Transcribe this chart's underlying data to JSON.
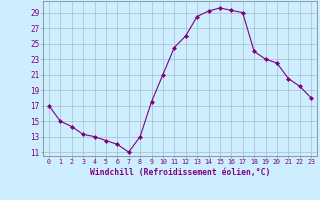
{
  "x": [
    0,
    1,
    2,
    3,
    4,
    5,
    6,
    7,
    8,
    9,
    10,
    11,
    12,
    13,
    14,
    15,
    16,
    17,
    18,
    19,
    20,
    21,
    22,
    23
  ],
  "y": [
    17,
    15,
    14.3,
    13.3,
    13,
    12.5,
    12,
    11,
    13,
    17.5,
    21,
    24.5,
    26,
    28.5,
    29.2,
    29.6,
    29.3,
    29,
    24,
    23,
    22.5,
    20.5,
    19.5,
    18
  ],
  "line_color": "#800080",
  "marker_color": "#800080",
  "bg_color": "#cceeff",
  "grid_color": "#aabbc8",
  "xlabel": "Windchill (Refroidissement éolien,°C)",
  "xlabel_color": "#800080",
  "tick_color": "#800080",
  "ylim": [
    10.5,
    30.5
  ],
  "xlim": [
    -0.5,
    23.5
  ],
  "yticks": [
    11,
    13,
    15,
    17,
    19,
    21,
    23,
    25,
    27,
    29
  ],
  "ytick_labels": [
    "11",
    "13",
    "15",
    "17",
    "19",
    "21",
    "23",
    "25",
    "27",
    "29"
  ],
  "xticks": [
    0,
    1,
    2,
    3,
    4,
    5,
    6,
    7,
    8,
    9,
    10,
    11,
    12,
    13,
    14,
    15,
    16,
    17,
    18,
    19,
    20,
    21,
    22,
    23
  ]
}
